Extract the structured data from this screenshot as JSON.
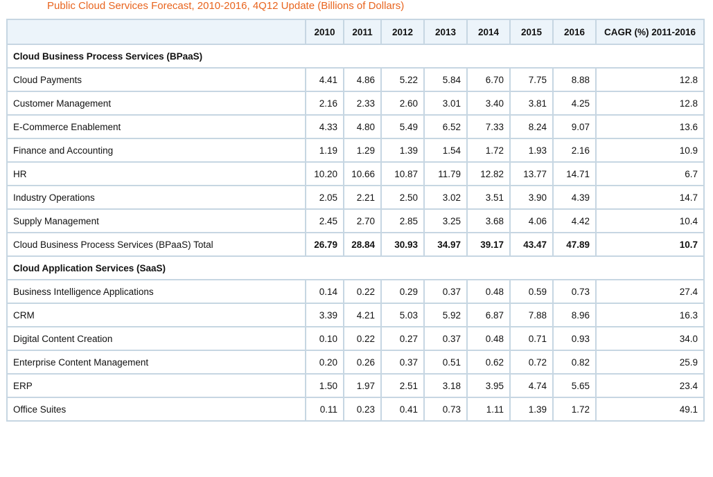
{
  "title": "Public Cloud Services Forecast, 2010-2016, 4Q12 Update (Billions of Dollars)",
  "title_color": "#e8641e",
  "border_color": "#c6d6e2",
  "header_bg": "#ecf4fa",
  "columns": [
    "",
    "2010",
    "2011",
    "2012",
    "2013",
    "2014",
    "2015",
    "2016",
    "CAGR (%) 2011-2016"
  ],
  "rows": [
    {
      "type": "section",
      "label": "Cloud Business Process Services (BPaaS)"
    },
    {
      "type": "data",
      "label": "Cloud Payments",
      "values": [
        "4.41",
        "4.86",
        "5.22",
        "5.84",
        "6.70",
        "7.75",
        "8.88",
        "12.8"
      ]
    },
    {
      "type": "data",
      "label": "Customer Management",
      "values": [
        "2.16",
        "2.33",
        "2.60",
        "3.01",
        "3.40",
        "3.81",
        "4.25",
        "12.8"
      ]
    },
    {
      "type": "data",
      "label": "E-Commerce Enablement",
      "values": [
        "4.33",
        "4.80",
        "5.49",
        "6.52",
        "7.33",
        "8.24",
        "9.07",
        "13.6"
      ]
    },
    {
      "type": "data",
      "label": "Finance and Accounting",
      "values": [
        "1.19",
        "1.29",
        "1.39",
        "1.54",
        "1.72",
        "1.93",
        "2.16",
        "10.9"
      ]
    },
    {
      "type": "data",
      "label": "HR",
      "values": [
        "10.20",
        "10.66",
        "10.87",
        "11.79",
        "12.82",
        "13.77",
        "14.71",
        "6.7"
      ]
    },
    {
      "type": "data",
      "label": "Industry Operations",
      "values": [
        "2.05",
        "2.21",
        "2.50",
        "3.02",
        "3.51",
        "3.90",
        "4.39",
        "14.7"
      ]
    },
    {
      "type": "data",
      "label": "Supply Management",
      "values": [
        "2.45",
        "2.70",
        "2.85",
        "3.25",
        "3.68",
        "4.06",
        "4.42",
        "10.4"
      ]
    },
    {
      "type": "total",
      "label": "Cloud Business Process Services (BPaaS) Total",
      "values": [
        "26.79",
        "28.84",
        "30.93",
        "34.97",
        "39.17",
        "43.47",
        "47.89",
        "10.7"
      ]
    },
    {
      "type": "section",
      "label": "Cloud Application Services (SaaS)"
    },
    {
      "type": "data",
      "label": "Business Intelligence Applications",
      "values": [
        "0.14",
        "0.22",
        "0.29",
        "0.37",
        "0.48",
        "0.59",
        "0.73",
        "27.4"
      ]
    },
    {
      "type": "data",
      "label": "CRM",
      "values": [
        "3.39",
        "4.21",
        "5.03",
        "5.92",
        "6.87",
        "7.88",
        "8.96",
        "16.3"
      ]
    },
    {
      "type": "data",
      "label": "Digital Content Creation",
      "values": [
        "0.10",
        "0.22",
        "0.27",
        "0.37",
        "0.48",
        "0.71",
        "0.93",
        "34.0"
      ]
    },
    {
      "type": "data",
      "label": "Enterprise Content Management",
      "values": [
        "0.20",
        "0.26",
        "0.37",
        "0.51",
        "0.62",
        "0.72",
        "0.82",
        "25.9"
      ]
    },
    {
      "type": "data",
      "label": "ERP",
      "values": [
        "1.50",
        "1.97",
        "2.51",
        "3.18",
        "3.95",
        "4.74",
        "5.65",
        "23.4"
      ]
    },
    {
      "type": "data",
      "label": "Office Suites",
      "values": [
        "0.11",
        "0.23",
        "0.41",
        "0.73",
        "1.11",
        "1.39",
        "1.72",
        "49.1"
      ]
    }
  ]
}
